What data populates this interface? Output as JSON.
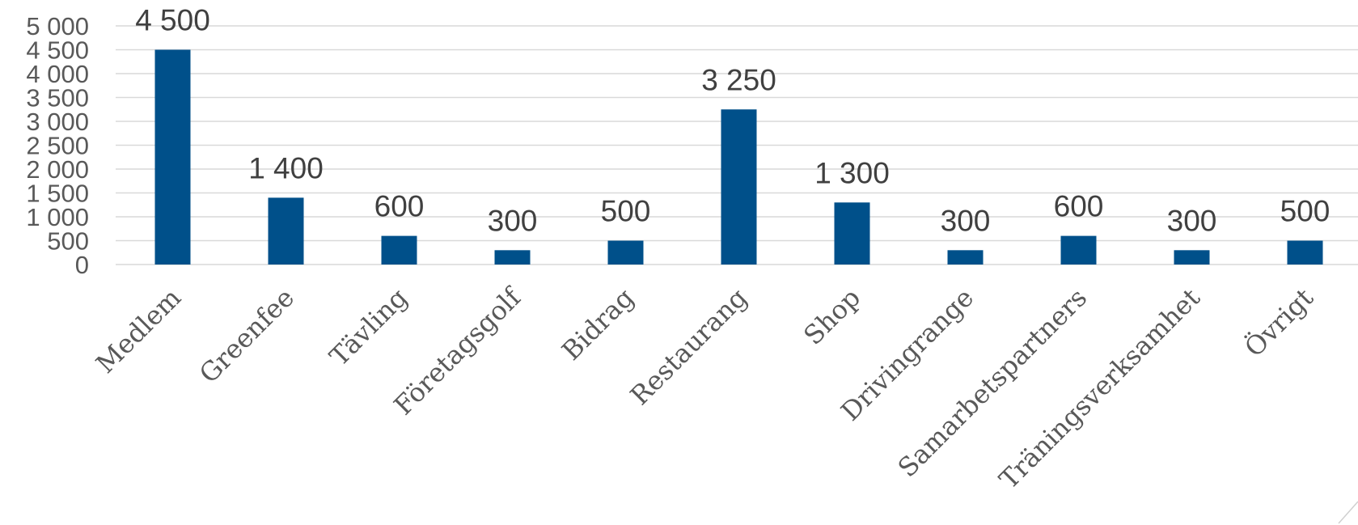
{
  "chart_data": {
    "type": "bar",
    "categories": [
      "Medlem",
      "Greenfee",
      "Tävling",
      "Företagsgolf",
      "Bidrag",
      "Restaurang",
      "Shop",
      "Drivingrange",
      "Samarbetspartners",
      "Träningsverksamhet",
      "Övrigt"
    ],
    "values": [
      4500,
      1400,
      600,
      300,
      500,
      3250,
      1300,
      300,
      600,
      300,
      500
    ],
    "value_labels": [
      "4 500",
      "1 400",
      "600",
      "300",
      "500",
      "3 250",
      "1 300",
      "300",
      "600",
      "300",
      "500"
    ],
    "y_ticks": [
      0,
      500,
      1000,
      1500,
      2000,
      2500,
      3000,
      3500,
      4000,
      4500,
      5000
    ],
    "y_tick_labels": [
      "0",
      "500",
      "1 000",
      "1 500",
      "2 000",
      "2 500",
      "3 000",
      "3 500",
      "4 000",
      "4 500",
      "5 000"
    ],
    "ylim": [
      0,
      5000
    ],
    "title": "",
    "xlabel": "",
    "ylabel": "",
    "grid": true,
    "legend": "none",
    "bar_color": "#00508a"
  }
}
